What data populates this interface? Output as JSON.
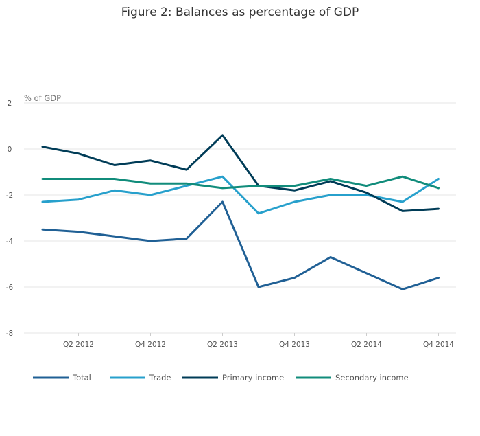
{
  "chart_data": {
    "type": "line",
    "title": "Figure 2: Balances as percentage of GDP",
    "ylabel": "% of GDP",
    "xlabel": "",
    "x": [
      "Q1 2012",
      "Q2 2012",
      "Q3 2012",
      "Q4 2012",
      "Q1 2013",
      "Q2 2013",
      "Q3 2013",
      "Q4 2013",
      "Q1 2014",
      "Q2 2014",
      "Q3 2014",
      "Q4 2014"
    ],
    "x_tick_labels": [
      "Q2 2012",
      "Q4 2012",
      "Q2 2013",
      "Q4 2013",
      "Q2 2014",
      "Q4 2014"
    ],
    "y_ticks": [
      2,
      0,
      -2,
      -4,
      -6,
      -8
    ],
    "ylim": [
      -8,
      2
    ],
    "grid": true,
    "legend_position": "bottom",
    "series": [
      {
        "name": "Total",
        "color": "#206095",
        "values": [
          -3.5,
          -3.6,
          -3.8,
          -4.0,
          -3.9,
          -2.3,
          -6.0,
          -5.6,
          -4.7,
          -5.4,
          -6.1,
          -5.6
        ]
      },
      {
        "name": "Trade",
        "color": "#27a0cc",
        "values": [
          -2.3,
          -2.2,
          -1.8,
          -2.0,
          -1.6,
          -1.2,
          -2.8,
          -2.3,
          -2.0,
          -2.0,
          -2.3,
          -1.3
        ]
      },
      {
        "name": "Primary income",
        "color": "#003c57",
        "values": [
          0.1,
          -0.2,
          -0.7,
          -0.5,
          -0.9,
          0.6,
          -1.6,
          -1.8,
          -1.4,
          -1.9,
          -2.7,
          -2.6
        ]
      },
      {
        "name": "Secondary income",
        "color": "#118c7b",
        "values": [
          -1.3,
          -1.3,
          -1.3,
          -1.5,
          -1.5,
          -1.7,
          -1.6,
          -1.6,
          -1.3,
          -1.6,
          -1.2,
          -1.7
        ]
      }
    ]
  }
}
